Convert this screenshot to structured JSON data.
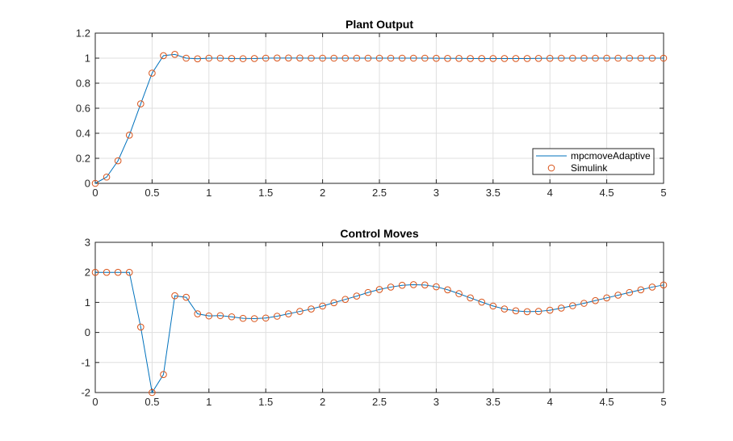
{
  "figure": {
    "background": "#ffffff",
    "line_color": "#0072bd",
    "marker_color": "#d95319"
  },
  "chart_data": [
    {
      "type": "line",
      "title": "Plant Output",
      "xlabel": "",
      "ylabel": "",
      "xlim": [
        0,
        5
      ],
      "ylim": [
        0,
        1.2
      ],
      "xticks": [
        "0",
        "0.5",
        "1",
        "1.5",
        "2",
        "2.5",
        "3",
        "3.5",
        "4",
        "4.5",
        "5"
      ],
      "yticks": [
        "0",
        "0.2",
        "0.4",
        "0.6",
        "0.8",
        "1",
        "1.2"
      ],
      "grid": true,
      "legend": {
        "placement": "bottom-right",
        "entries": [
          "mpcmoveAdaptive",
          "Simulink"
        ]
      },
      "x": [
        0,
        0.1,
        0.2,
        0.3,
        0.4,
        0.5,
        0.6,
        0.7,
        0.8,
        0.9,
        1.0,
        1.1,
        1.2,
        1.3,
        1.4,
        1.5,
        1.6,
        1.7,
        1.8,
        1.9,
        2.0,
        2.1,
        2.2,
        2.3,
        2.4,
        2.5,
        2.6,
        2.7,
        2.8,
        2.9,
        3.0,
        3.1,
        3.2,
        3.3,
        3.4,
        3.5,
        3.6,
        3.7,
        3.8,
        3.9,
        4.0,
        4.1,
        4.2,
        4.3,
        4.4,
        4.5,
        4.6,
        4.7,
        4.8,
        4.9,
        5.0
      ],
      "series": [
        {
          "name": "mpcmoveAdaptive",
          "style": "line",
          "values": [
            0,
            0.05,
            0.18,
            0.385,
            0.635,
            0.88,
            1.02,
            1.03,
            1.0,
            0.995,
            1.0,
            1.0,
            0.997,
            0.996,
            0.997,
            1.0,
            1.001,
            1.001,
            1.001,
            1.0,
            1.0,
            1.0,
            1.0,
            1.0,
            1.0,
            1.0,
            1.0,
            1.0,
            1.0,
            1.0,
            0.999,
            0.998,
            0.998,
            0.997,
            0.997,
            0.997,
            0.997,
            0.997,
            0.997,
            0.998,
            0.999,
            1.0,
            1.0,
            1.0,
            1.0,
            1.0,
            1.0,
            1.0,
            1.0,
            1.0,
            1.0
          ]
        },
        {
          "name": "Simulink",
          "style": "markers",
          "values": [
            0,
            0.05,
            0.18,
            0.385,
            0.635,
            0.88,
            1.02,
            1.03,
            1.0,
            0.995,
            1.0,
            1.0,
            0.997,
            0.996,
            0.997,
            1.0,
            1.001,
            1.001,
            1.001,
            1.0,
            1.0,
            1.0,
            1.0,
            1.0,
            1.0,
            1.0,
            1.0,
            1.0,
            1.0,
            1.0,
            0.999,
            0.998,
            0.998,
            0.997,
            0.997,
            0.997,
            0.997,
            0.997,
            0.997,
            0.998,
            0.999,
            1.0,
            1.0,
            1.0,
            1.0,
            1.0,
            1.0,
            1.0,
            1.0,
            1.0,
            1.0
          ]
        }
      ]
    },
    {
      "type": "line",
      "title": "Control Moves",
      "xlabel": "",
      "ylabel": "",
      "xlim": [
        0,
        5
      ],
      "ylim": [
        -2,
        3
      ],
      "xticks": [
        "0",
        "0.5",
        "1",
        "1.5",
        "2",
        "2.5",
        "3",
        "3.5",
        "4",
        "4.5",
        "5"
      ],
      "yticks": [
        "-2",
        "-1",
        "0",
        "1",
        "2",
        "3"
      ],
      "grid": true,
      "x": [
        0,
        0.1,
        0.2,
        0.3,
        0.4,
        0.5,
        0.6,
        0.7,
        0.8,
        0.9,
        1.0,
        1.1,
        1.2,
        1.3,
        1.4,
        1.5,
        1.6,
        1.7,
        1.8,
        1.9,
        2.0,
        2.1,
        2.2,
        2.3,
        2.4,
        2.5,
        2.6,
        2.7,
        2.8,
        2.9,
        3.0,
        3.1,
        3.2,
        3.3,
        3.4,
        3.5,
        3.6,
        3.7,
        3.8,
        3.9,
        4.0,
        4.1,
        4.2,
        4.3,
        4.4,
        4.5,
        4.6,
        4.7,
        4.8,
        4.9,
        5.0
      ],
      "series": [
        {
          "name": "mpcmoveAdaptive",
          "style": "line",
          "values": [
            2.0,
            2.0,
            2.0,
            2.0,
            0.18,
            -2.0,
            -1.4,
            1.22,
            1.17,
            0.62,
            0.55,
            0.56,
            0.52,
            0.47,
            0.46,
            0.48,
            0.54,
            0.62,
            0.7,
            0.78,
            0.88,
            0.99,
            1.1,
            1.21,
            1.33,
            1.43,
            1.51,
            1.57,
            1.59,
            1.58,
            1.52,
            1.42,
            1.29,
            1.15,
            1.01,
            0.88,
            0.78,
            0.72,
            0.69,
            0.7,
            0.74,
            0.81,
            0.89,
            0.97,
            1.06,
            1.15,
            1.24,
            1.33,
            1.42,
            1.51,
            1.58
          ]
        },
        {
          "name": "Simulink",
          "style": "markers",
          "values": [
            2.0,
            2.0,
            2.0,
            2.0,
            0.18,
            -2.0,
            -1.4,
            1.22,
            1.17,
            0.62,
            0.55,
            0.56,
            0.52,
            0.47,
            0.46,
            0.48,
            0.54,
            0.62,
            0.7,
            0.78,
            0.88,
            0.99,
            1.1,
            1.21,
            1.33,
            1.43,
            1.51,
            1.57,
            1.59,
            1.58,
            1.52,
            1.42,
            1.29,
            1.15,
            1.01,
            0.88,
            0.78,
            0.72,
            0.69,
            0.7,
            0.74,
            0.81,
            0.89,
            0.97,
            1.06,
            1.15,
            1.24,
            1.33,
            1.42,
            1.51,
            1.58
          ]
        }
      ]
    }
  ]
}
